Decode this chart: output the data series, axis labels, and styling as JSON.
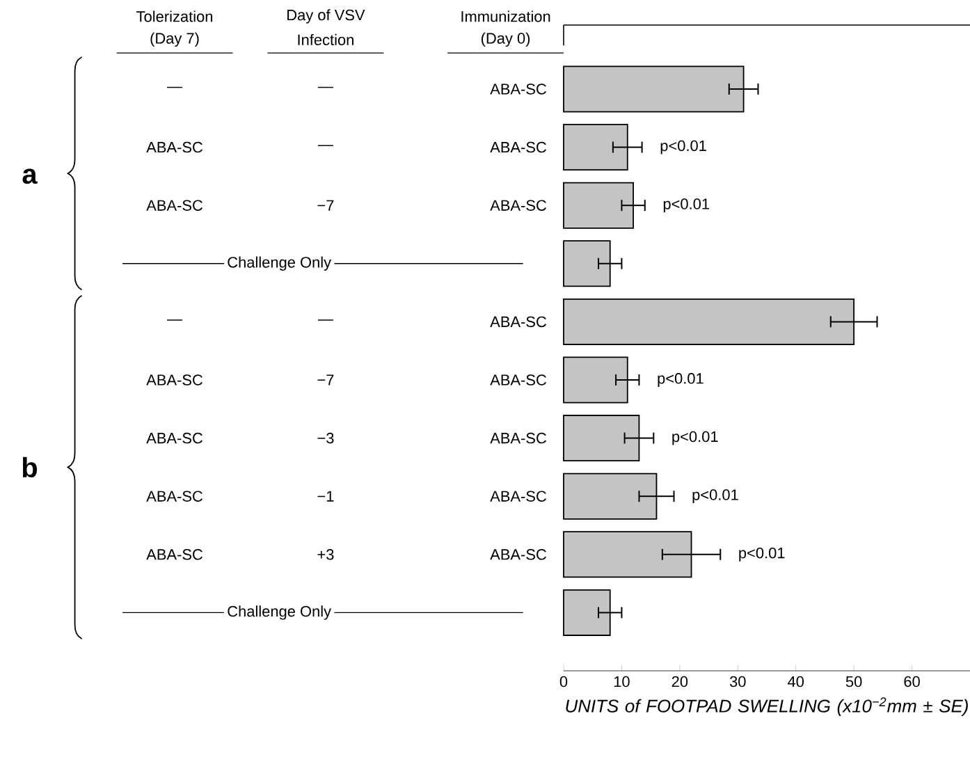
{
  "chart_data": {
    "type": "bar",
    "orientation": "horizontal",
    "xlabel": "UNITS of FOOTPAD SWELLING (x10$^{−2}$mm ± SE)",
    "categories": [
      "ABA-SC",
      "ABA-SC",
      "ABA-SC",
      null,
      "ABA-SC",
      "ABA-SC",
      "ABA-SC",
      "ABA-SC",
      "ABA-SC",
      null
    ],
    "values": [
      31,
      11,
      12,
      8,
      50,
      11,
      13,
      16,
      22,
      8
    ],
    "errors": [
      2.5,
      2.5,
      2,
      2,
      4,
      2,
      2.5,
      3,
      5,
      2
    ],
    "value_labels": [
      null,
      "p<0.01",
      "p<0.01",
      null,
      null,
      "p<0.01",
      "p<0.01",
      "p<0.01",
      "p<0.01",
      null
    ],
    "color": "#c4c4c4",
    "xlim": [
      0,
      70
    ],
    "xticks": [
      0,
      10,
      20,
      30,
      40,
      50,
      60
    ],
    "annotations": [
      "Tolerization",
      "(Day 7)",
      "Day of VSV",
      "Infection",
      "Immunization",
      "(Day 0)",
      "a",
      "b",
      "—",
      "—",
      "ABA-SC",
      "—",
      "ABA-SC",
      "−7",
      "Challenge Only",
      "—",
      "—",
      "ABA-SC",
      "−7",
      "ABA-SC",
      "−3",
      "ABA-SC",
      "−1",
      "ABA-SC",
      "+3",
      "Challenge Only"
    ]
  }
}
